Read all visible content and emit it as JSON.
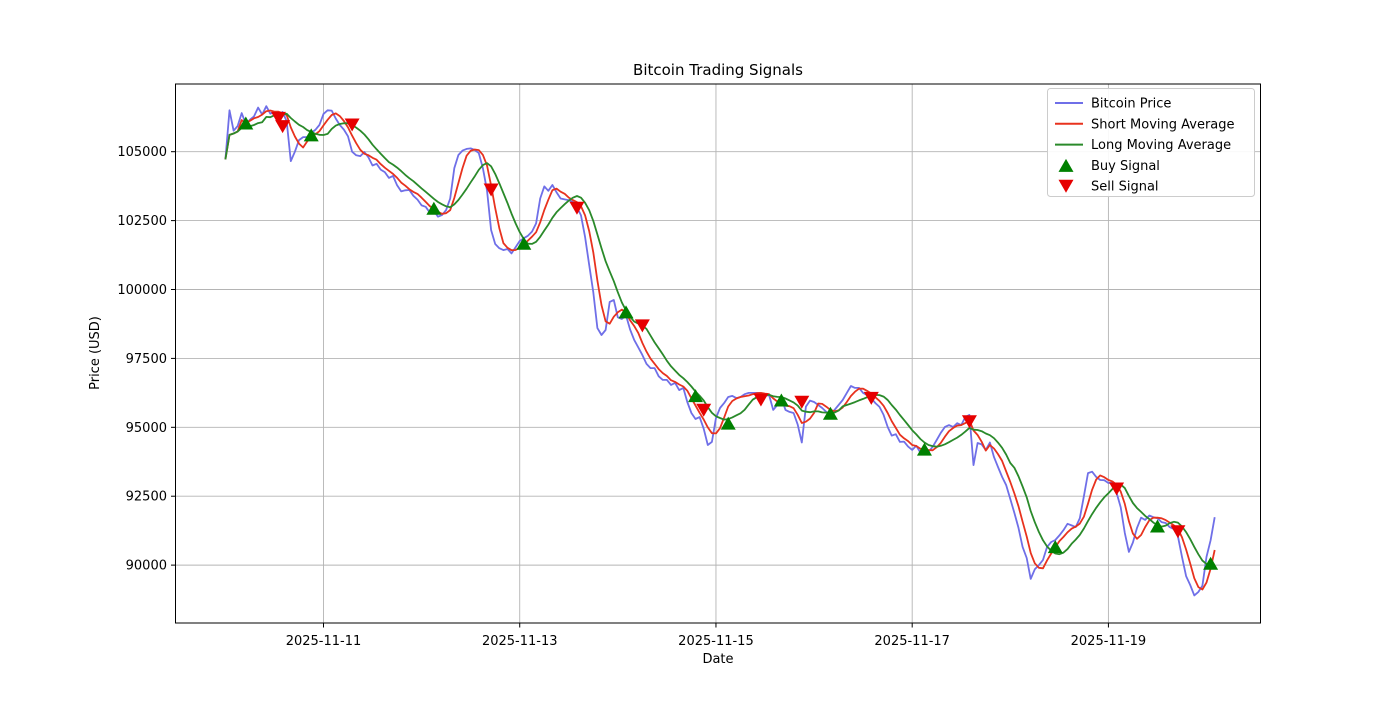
{
  "title": "Bitcoin Trading Signals",
  "axes": {
    "xlabel": "Date",
    "ylabel": "Price (USD)",
    "x_ticks": [
      {
        "hour": 24,
        "label": "2025-11-11"
      },
      {
        "hour": 72,
        "label": "2025-11-13"
      },
      {
        "hour": 120,
        "label": "2025-11-15"
      },
      {
        "hour": 168,
        "label": "2025-11-17"
      },
      {
        "hour": 216,
        "label": "2025-11-19"
      }
    ],
    "y_ticks": [
      90000,
      92500,
      95000,
      97500,
      100000,
      102500,
      105000
    ],
    "xlim_hours": [
      -12.2,
      253.2
    ],
    "ylim": [
      87900,
      107456
    ],
    "grid": true
  },
  "chart_data": {
    "type": "line",
    "x_unit": "hours since 2025-11-10 00:00",
    "series": [
      {
        "name": "Bitcoin Price",
        "color": "#6f6fe8",
        "line_width": 1.8,
        "values": [
          104720,
          106500,
          105760,
          105930,
          106400,
          106000,
          106160,
          106280,
          106600,
          106350,
          106650,
          106380,
          106440,
          106330,
          106440,
          106100,
          104660,
          105000,
          105420,
          105530,
          105530,
          105680,
          105790,
          105970,
          106370,
          106500,
          106490,
          106200,
          105970,
          105800,
          105560,
          105000,
          104870,
          104840,
          104990,
          104790,
          104500,
          104560,
          104350,
          104260,
          104050,
          104120,
          103780,
          103560,
          103600,
          103610,
          103400,
          103260,
          103050,
          103000,
          102790,
          102850,
          102640,
          102700,
          102880,
          103300,
          104400,
          104880,
          105040,
          105100,
          105120,
          105060,
          104950,
          104400,
          103600,
          102160,
          101650,
          101500,
          101430,
          101470,
          101310,
          101530,
          101760,
          101860,
          101950,
          102100,
          102400,
          103300,
          103740,
          103580,
          103790,
          103530,
          103300,
          103270,
          103240,
          103170,
          102990,
          102690,
          101900,
          100890,
          99900,
          98600,
          98350,
          98530,
          99550,
          99620,
          98990,
          98930,
          99060,
          98550,
          98170,
          97900,
          97620,
          97300,
          97150,
          97150,
          96850,
          96720,
          96720,
          96540,
          96610,
          96350,
          96430,
          95920,
          95520,
          95300,
          95370,
          94950,
          94360,
          94470,
          95340,
          95700,
          95880,
          96100,
          96140,
          96060,
          96100,
          96200,
          96250,
          96250,
          96250,
          96250,
          96140,
          96170,
          95630,
          95810,
          96060,
          95630,
          95560,
          95520,
          95100,
          94450,
          95750,
          95970,
          95920,
          95810,
          95700,
          95560,
          95450,
          95630,
          95810,
          95990,
          96250,
          96500,
          96430,
          96430,
          96250,
          96170,
          96050,
          95880,
          95740,
          95450,
          95010,
          94700,
          94750,
          94470,
          94480,
          94300,
          94180,
          94330,
          94080,
          94180,
          94110,
          94290,
          94540,
          94800,
          95010,
          95080,
          95010,
          95150,
          95080,
          95370,
          95450,
          93630,
          94430,
          94380,
          94180,
          94450,
          93920,
          93560,
          93200,
          92900,
          92400,
          91890,
          91350,
          90660,
          90260,
          89500,
          89850,
          90000,
          90190,
          90660,
          90840,
          90910,
          91080,
          91270,
          91500,
          91440,
          91380,
          91700,
          92500,
          93340,
          93390,
          93200,
          93090,
          93080,
          92980,
          92990,
          92620,
          92100,
          91170,
          90480,
          90820,
          91350,
          91720,
          91640,
          91800,
          91740,
          91700,
          91560,
          91530,
          91380,
          91310,
          91050,
          90300,
          89600,
          89280,
          88900,
          89030,
          89250,
          90300,
          90900,
          91740
        ]
      },
      {
        "name": "Short Moving Average",
        "color": "#e8321e",
        "line_width": 1.8,
        "rolling_window": 4
      },
      {
        "name": "Long Moving Average",
        "color": "#2a8a2a",
        "line_width": 1.8,
        "rolling_window": 10
      }
    ],
    "buy_signals": {
      "name": "Buy Signal",
      "color": "#008000",
      "points": [
        [
          5,
          106040
        ],
        [
          21,
          105610
        ],
        [
          51,
          102950
        ],
        [
          73,
          101680
        ],
        [
          98,
          99190
        ],
        [
          115,
          96150
        ],
        [
          123,
          95150
        ],
        [
          136,
          95990
        ],
        [
          148,
          95510
        ],
        [
          171,
          94210
        ],
        [
          203,
          90670
        ],
        [
          228,
          91420
        ],
        [
          241,
          90070
        ]
      ]
    },
    "sell_signals": {
      "name": "Sell Signal",
      "color": "#e60000",
      "points": [
        [
          13,
          106210
        ],
        [
          14,
          105910
        ],
        [
          31,
          105970
        ],
        [
          65,
          103610
        ],
        [
          86,
          102950
        ],
        [
          102,
          98680
        ],
        [
          117,
          95620
        ],
        [
          131,
          95990
        ],
        [
          141,
          95910
        ],
        [
          158,
          96050
        ],
        [
          182,
          95200
        ],
        [
          218,
          92760
        ],
        [
          233,
          91210
        ]
      ]
    }
  },
  "legend": {
    "entries": [
      {
        "type": "line",
        "color": "#6f6fe8",
        "label": "Bitcoin Price"
      },
      {
        "type": "line",
        "color": "#e8321e",
        "label": "Short Moving Average"
      },
      {
        "type": "line",
        "color": "#2a8a2a",
        "label": "Long Moving Average"
      },
      {
        "type": "marker-up",
        "color": "#008000",
        "label": "Buy Signal"
      },
      {
        "type": "marker-down",
        "color": "#e60000",
        "label": "Sell Signal"
      }
    ]
  }
}
